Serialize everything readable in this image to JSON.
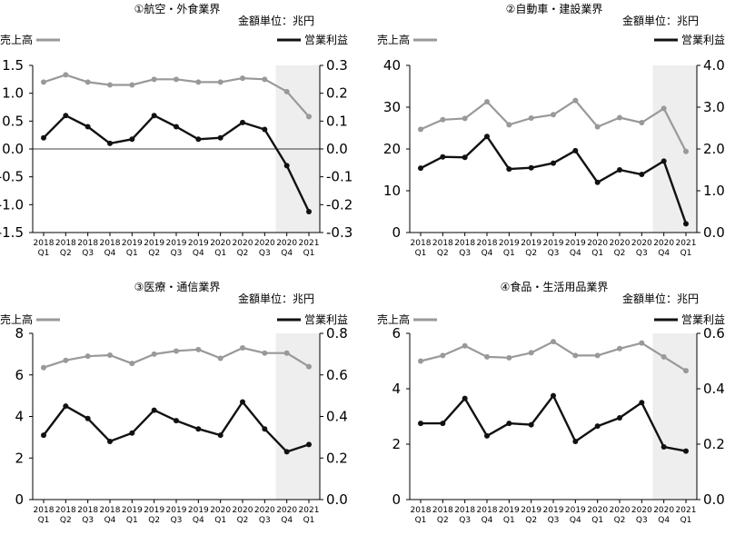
{
  "chart_data": [
    {
      "type": "line",
      "title": "①航空・外食業界",
      "unit_label": "金額単位：兆円",
      "categories": [
        [
          "2018",
          "Q1"
        ],
        [
          "2018",
          "Q2"
        ],
        [
          "2018",
          "Q3"
        ],
        [
          "2018",
          "Q4"
        ],
        [
          "2019",
          "Q1"
        ],
        [
          "2019",
          "Q2"
        ],
        [
          "2019",
          "Q3"
        ],
        [
          "2019",
          "Q4"
        ],
        [
          "2020",
          "Q1"
        ],
        [
          "2020",
          "Q2"
        ],
        [
          "2020",
          "Q3"
        ],
        [
          "2020",
          "Q4"
        ],
        [
          "2021",
          "Q1"
        ]
      ],
      "left_axis": {
        "ylim": [
          -1.5,
          1.5
        ],
        "ticks": [
          "1.5",
          "1.0",
          "0.5",
          "0.0",
          "-0.5",
          "-1.0",
          "-1.5"
        ]
      },
      "right_axis": {
        "ylim": [
          -0.3,
          0.3
        ],
        "ticks": [
          "0.3",
          "0.2",
          "0.1",
          "0.0",
          "-0.1",
          "-0.2",
          "-0.3"
        ]
      },
      "zero_line": true,
      "highlight_range": [
        11,
        12
      ],
      "series": [
        {
          "name": "売上高",
          "axis": "left",
          "color": "#999999",
          "values": [
            1.2,
            1.33,
            1.2,
            1.15,
            1.15,
            1.25,
            1.25,
            1.2,
            1.2,
            1.27,
            1.25,
            1.03,
            0.58
          ]
        },
        {
          "name": "営業利益",
          "axis": "right",
          "color": "#111111",
          "values": [
            0.04,
            0.12,
            0.08,
            0.02,
            0.035,
            0.12,
            0.08,
            0.035,
            0.04,
            0.095,
            0.07,
            -0.06,
            -0.225
          ]
        }
      ]
    },
    {
      "type": "line",
      "title": "②自動車・建設業界",
      "unit_label": "金額単位：兆円",
      "categories": [
        [
          "2018",
          "Q1"
        ],
        [
          "2018",
          "Q2"
        ],
        [
          "2018",
          "Q3"
        ],
        [
          "2018",
          "Q4"
        ],
        [
          "2019",
          "Q1"
        ],
        [
          "2019",
          "Q2"
        ],
        [
          "2019",
          "Q3"
        ],
        [
          "2019",
          "Q4"
        ],
        [
          "2020",
          "Q1"
        ],
        [
          "2020",
          "Q2"
        ],
        [
          "2020",
          "Q3"
        ],
        [
          "2020",
          "Q4"
        ],
        [
          "2021",
          "Q1"
        ]
      ],
      "left_axis": {
        "ylim": [
          0,
          40
        ],
        "ticks": [
          "40",
          "30",
          "20",
          "10",
          "0"
        ]
      },
      "right_axis": {
        "ylim": [
          0,
          4.0
        ],
        "ticks": [
          "4.0",
          "3.0",
          "2.0",
          "1.0",
          "0.0"
        ]
      },
      "zero_line": false,
      "highlight_range": [
        11,
        12
      ],
      "series": [
        {
          "name": "売上高",
          "axis": "left",
          "color": "#999999",
          "values": [
            24.7,
            27,
            27.3,
            31.3,
            25.8,
            27.4,
            28.2,
            31.6,
            25.3,
            27.5,
            26.3,
            29.7,
            19.4
          ]
        },
        {
          "name": "営業利益",
          "axis": "right",
          "color": "#111111",
          "values": [
            1.54,
            1.81,
            1.8,
            2.3,
            1.52,
            1.55,
            1.66,
            1.96,
            1.2,
            1.5,
            1.39,
            1.71,
            0.21
          ]
        }
      ]
    },
    {
      "type": "line",
      "title": "③医療・通信業界",
      "unit_label": "金額単位：兆円",
      "categories": [
        [
          "2018",
          "Q1"
        ],
        [
          "2018",
          "Q2"
        ],
        [
          "2018",
          "Q3"
        ],
        [
          "2018",
          "Q4"
        ],
        [
          "2019",
          "Q1"
        ],
        [
          "2019",
          "Q2"
        ],
        [
          "2019",
          "Q3"
        ],
        [
          "2019",
          "Q4"
        ],
        [
          "2020",
          "Q1"
        ],
        [
          "2020",
          "Q2"
        ],
        [
          "2020",
          "Q3"
        ],
        [
          "2020",
          "Q4"
        ],
        [
          "2021",
          "Q1"
        ]
      ],
      "left_axis": {
        "ylim": [
          0,
          8
        ],
        "ticks": [
          "8",
          "6",
          "4",
          "2",
          "0"
        ]
      },
      "right_axis": {
        "ylim": [
          0,
          0.8
        ],
        "ticks": [
          "0.8",
          "0.6",
          "0.4",
          "0.2",
          "0.0"
        ]
      },
      "zero_line": false,
      "highlight_range": [
        11,
        12
      ],
      "series": [
        {
          "name": "売上高",
          "axis": "left",
          "color": "#999999",
          "values": [
            6.35,
            6.7,
            6.9,
            6.95,
            6.55,
            7.0,
            7.15,
            7.22,
            6.8,
            7.3,
            7.05,
            7.05,
            6.4
          ]
        },
        {
          "name": "営業利益",
          "axis": "right",
          "color": "#111111",
          "values": [
            0.31,
            0.45,
            0.39,
            0.28,
            0.32,
            0.43,
            0.38,
            0.34,
            0.31,
            0.47,
            0.34,
            0.23,
            0.265
          ]
        }
      ]
    },
    {
      "type": "line",
      "title": "④食品・生活用品業界",
      "unit_label": "金額単位：兆円",
      "categories": [
        [
          "2018",
          "Q1"
        ],
        [
          "2018",
          "Q2"
        ],
        [
          "2018",
          "Q3"
        ],
        [
          "2018",
          "Q4"
        ],
        [
          "2019",
          "Q1"
        ],
        [
          "2019",
          "Q2"
        ],
        [
          "2019",
          "Q3"
        ],
        [
          "2019",
          "Q4"
        ],
        [
          "2020",
          "Q1"
        ],
        [
          "2020",
          "Q2"
        ],
        [
          "2020",
          "Q3"
        ],
        [
          "2020",
          "Q4"
        ],
        [
          "2021",
          "Q1"
        ]
      ],
      "left_axis": {
        "ylim": [
          0,
          6
        ],
        "ticks": [
          "6",
          "4",
          "2",
          "0"
        ]
      },
      "right_axis": {
        "ylim": [
          0,
          0.6
        ],
        "ticks": [
          "0.6",
          "0.4",
          "0.2",
          "0.0"
        ]
      },
      "zero_line": false,
      "highlight_range": [
        11,
        12
      ],
      "series": [
        {
          "name": "売上高",
          "axis": "left",
          "color": "#999999",
          "values": [
            5.0,
            5.2,
            5.55,
            5.15,
            5.12,
            5.3,
            5.7,
            5.2,
            5.2,
            5.45,
            5.65,
            5.15,
            4.65
          ]
        },
        {
          "name": "営業利益",
          "axis": "right",
          "color": "#111111",
          "values": [
            0.275,
            0.275,
            0.365,
            0.23,
            0.275,
            0.27,
            0.375,
            0.21,
            0.265,
            0.295,
            0.35,
            0.19,
            0.175
          ]
        }
      ]
    }
  ]
}
